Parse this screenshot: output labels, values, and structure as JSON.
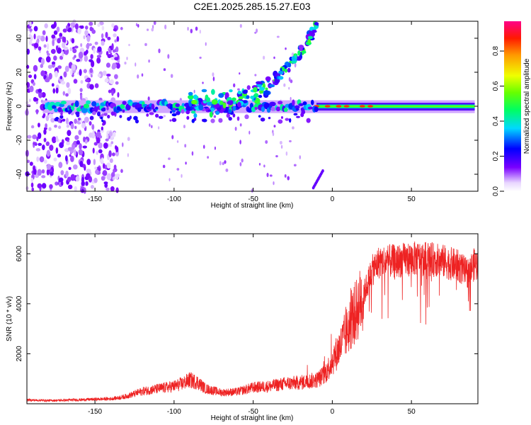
{
  "title": "C2E1.2025.285.15.27.E03",
  "chart_data": [
    {
      "type": "heatmap",
      "name": "spectrogram",
      "xlabel": "Height of straight line (km)",
      "ylabel": "Frequency (Hz)",
      "xlim": [
        -193,
        92
      ],
      "ylim": [
        -50,
        50
      ],
      "xticks": [
        -150,
        -100,
        -50,
        0,
        50
      ],
      "yticks": [
        -40,
        -20,
        0,
        20,
        40
      ],
      "colorbar": {
        "label": "Normalized spectral amplitude",
        "range": [
          0,
          0.97
        ],
        "ticks": [
          0.0,
          0.2,
          0.4,
          0.6,
          0.8
        ]
      },
      "features": {
        "carrier": {
          "frequency_hz": 0,
          "x_range": [
            -183,
            90
          ],
          "amplitude": 0.6
        },
        "rising_branch": {
          "x_range": [
            -90,
            -10
          ],
          "frequency_hz_range": [
            2,
            48
          ]
        },
        "falling_branch": {
          "x_range": [
            -12,
            -6
          ],
          "frequency_hz_range": [
            -48,
            -38
          ]
        },
        "noise_band": {
          "x_range": [
            -193,
            -135
          ],
          "frequency_hz_range": [
            -50,
            50
          ]
        }
      }
    },
    {
      "type": "line",
      "name": "snr",
      "xlabel": "Height of straight line (km)",
      "ylabel": "SNR (10 * v/v)",
      "xlim": [
        -193,
        92
      ],
      "ylim": [
        0,
        6800
      ],
      "xticks": [
        -150,
        -100,
        -50,
        0,
        50
      ],
      "yticks": [
        2000,
        4000,
        6000
      ],
      "color": "#ee2222",
      "series": [
        {
          "name": "SNR",
          "x": [
            -193,
            -180,
            -170,
            -160,
            -150,
            -140,
            -135,
            -130,
            -120,
            -110,
            -100,
            -95,
            -90,
            -85,
            -80,
            -70,
            -60,
            -50,
            -40,
            -30,
            -20,
            -15,
            -10,
            -5,
            0,
            5,
            10,
            15,
            20,
            25,
            30,
            40,
            50,
            60,
            70,
            80,
            85,
            90,
            92
          ],
          "values": [
            150,
            130,
            140,
            160,
            180,
            200,
            240,
            300,
            500,
            600,
            700,
            800,
            950,
            850,
            600,
            450,
            480,
            650,
            700,
            800,
            850,
            900,
            950,
            1150,
            1700,
            2300,
            3000,
            3700,
            4400,
            5300,
            5700,
            5700,
            5800,
            5800,
            5700,
            5500,
            5200,
            5600,
            5500
          ]
        }
      ]
    }
  ]
}
